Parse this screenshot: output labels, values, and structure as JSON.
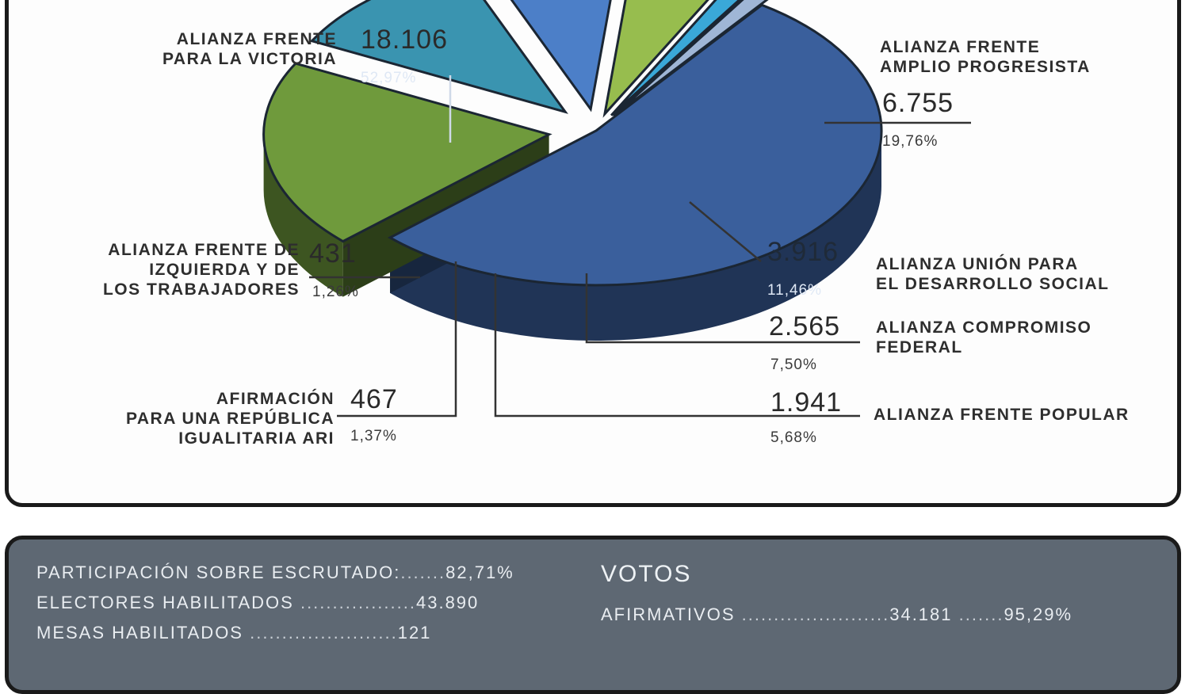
{
  "chart_data": {
    "type": "pie",
    "slices": [
      {
        "label": "ALIANZA FRENTE PARA LA VICTORIA",
        "value": 18106,
        "votes_label": "18.106",
        "percent_label": "52,97%",
        "color": "#3a5f9c"
      },
      {
        "label": "ALIANZA FRENTE AMPLIO PROGRESISTA",
        "value": 6755,
        "votes_label": "6.755",
        "percent_label": "19,76%",
        "color": "#6f9a3c"
      },
      {
        "label": "ALIANZA UNIÓN PARA EL DESARROLLO SOCIAL",
        "value": 3916,
        "votes_label": "3.916",
        "percent_label": "11,46%",
        "color": "#3a94b0"
      },
      {
        "label": "ALIANZA COMPROMISO FEDERAL",
        "value": 2565,
        "votes_label": "2.565",
        "percent_label": "7,50%",
        "color": "#4c7fc8"
      },
      {
        "label": "ALIANZA FRENTE POPULAR",
        "value": 1941,
        "votes_label": "1.941",
        "percent_label": "5,68%",
        "color": "#97bd4e"
      },
      {
        "label": "AFIRMACIÓN PARA UNA REPÚBLICA IGUALITARIA ARI",
        "value": 467,
        "votes_label": "467",
        "percent_label": "1,37%",
        "color": "#3aa8d8"
      },
      {
        "label": "ALIANZA FRENTE DE IZQUIERDA Y DE LOS TRABAJADORES",
        "value": 431,
        "votes_label": "431",
        "percent_label": "1,26%",
        "color": "#9fb6d6"
      }
    ]
  },
  "labels": {
    "fpv": {
      "line1": "ALIANZA FRENTE",
      "line2": "PARA LA VICTORIA",
      "votes": "18.106",
      "pct": "52,97%"
    },
    "fap": {
      "line1": "ALIANZA FRENTE",
      "line2": "AMPLIO PROGRESISTA",
      "votes": "6.755",
      "pct": "19,76%"
    },
    "uds": {
      "line1": "ALIANZA UNIÓN PARA",
      "line2": "EL DESARROLLO SOCIAL",
      "votes": "3.916",
      "pct": "11,46%"
    },
    "cf": {
      "line1": "ALIANZA COMPROMISO",
      "line2": "FEDERAL",
      "votes": "2.565",
      "pct": "7,50%"
    },
    "fp": {
      "line1": "ALIANZA FRENTE POPULAR",
      "votes": "1.941",
      "pct": "5,68%"
    },
    "ari": {
      "line1": "AFIRMACIÓN",
      "line2": "PARA UNA REPÚBLICA",
      "line3": "IGUALITARIA ARI",
      "votes": "467",
      "pct": "1,37%"
    },
    "fit": {
      "line1": "ALIANZA FRENTE DE",
      "line2": "IZQUIERDA Y DE",
      "line3": "LOS TRABAJADORES",
      "votes": "431",
      "pct": "1,26%"
    }
  },
  "stats": {
    "participacion_label": "PARTICIPACIÓN SOBRE ESCRUTADO:",
    "participacion_value": "82,71%",
    "electores_label": "ELECTORES HABILITADOS",
    "electores_value": "43.890",
    "mesas_label": "MESAS HABILITADOS",
    "mesas_value": "121",
    "votos_title": "VOTOS",
    "afirmativos_label": "AFIRMATIVOS",
    "afirmativos_votes": "34.181",
    "afirmativos_pct": "95,29%"
  }
}
